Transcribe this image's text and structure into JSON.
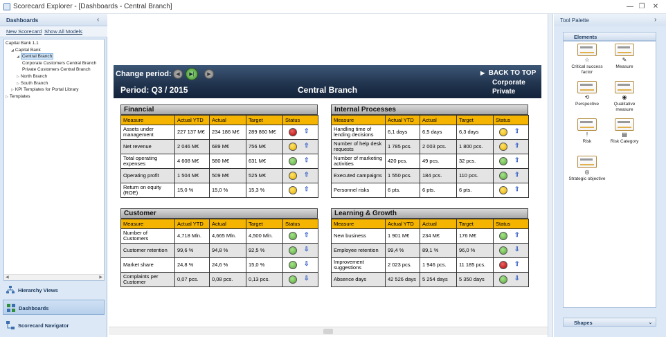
{
  "window": {
    "title": "Scorecard Explorer - [Dashboards - Central Branch]",
    "minimize": "—",
    "restore": "❐",
    "close": "✕"
  },
  "left_panel": {
    "header": "Dashboards",
    "chevron": "‹",
    "toolbar": {
      "new_scorecard": "New Scorecard",
      "show_all": "Show All Models"
    },
    "tree": [
      {
        "label": "Capital Bank 1.1",
        "indent": 0,
        "expander": ""
      },
      {
        "label": "Capital Bank",
        "indent": 1,
        "expander": "◢"
      },
      {
        "label": "Central Branch",
        "indent": 2,
        "expander": "◢",
        "selected": true
      },
      {
        "label": "Corporate Customers Central Branch",
        "indent": 3,
        "expander": ""
      },
      {
        "label": "Private Customers Central Branch",
        "indent": 3,
        "expander": ""
      },
      {
        "label": "North Branch",
        "indent": 2,
        "expander": "▷"
      },
      {
        "label": "South Branch",
        "indent": 2,
        "expander": "▷"
      },
      {
        "label": "KPI Templates for Portal Library",
        "indent": 1,
        "expander": "▷"
      },
      {
        "label": "Templates",
        "indent": 0,
        "expander": "▷"
      }
    ],
    "nav": {
      "hierarchy": "Hierarchy Views",
      "dashboards": "Dashboards",
      "navigator": "Scorecard Navigator"
    }
  },
  "banner": {
    "change_period": "Change period:",
    "prev": "◀",
    "current": "▶|",
    "next": "▶",
    "period": "Period:  Q3 / 2015",
    "branch": "Central Branch",
    "back_to_top": "BACK TO TOP",
    "link_corporate": "Corporate",
    "link_private": "Private"
  },
  "columns": [
    "Measure",
    "Actual YTD",
    "Actual",
    "Target",
    "Status"
  ],
  "sections": [
    {
      "id": "financial",
      "title": "Financial",
      "rows": [
        [
          "Assets under management",
          "227 137 M€",
          "234 186 M€",
          "289 860 M€",
          "red",
          "up"
        ],
        [
          "Net revenue",
          "2 046 M€",
          "689 M€",
          "756 M€",
          "yellow",
          "up"
        ],
        [
          "Total operating expenses",
          "4 608 M€",
          "580 M€",
          "631 M€",
          "green",
          "up"
        ],
        [
          "Operating profit",
          "1 504 M€",
          "509 M€",
          "525 M€",
          "yellow",
          "up"
        ],
        [
          "Return on equity (ROE)",
          "15,0 %",
          "15,0 %",
          "15,3 %",
          "yellow",
          "up"
        ]
      ]
    },
    {
      "id": "internal",
      "title": "Internal Processes",
      "rows": [
        [
          "Handling time of lending decisions",
          "6,1 days",
          "6,5 days",
          "6,3 days",
          "yellow",
          "up"
        ],
        [
          "Number of help desk requests",
          "1 785 pcs.",
          "2 003 pcs.",
          "1 800 pcs.",
          "yellow",
          "up"
        ],
        [
          "Number of marketing activities",
          "420 pcs.",
          "49 pcs.",
          "32 pcs.",
          "green",
          "up"
        ],
        [
          "Executed campaigns",
          "1 550 pcs.",
          "184 pcs.",
          "110 pcs.",
          "green",
          "up"
        ],
        [
          "Personnel risks",
          "6 pts.",
          "6 pts.",
          "6 pts.",
          "yellow",
          "up"
        ]
      ]
    },
    {
      "id": "customer",
      "title": "Customer",
      "rows": [
        [
          "Number of Customers",
          "4,718 Mln.",
          "4,665 Mln.",
          "4,500 Mln.",
          "green",
          "up"
        ],
        [
          "Customer retention",
          "99,6 %",
          "94,8 %",
          "92,5 %",
          "green",
          "down"
        ],
        [
          "Market share",
          "24,8 %",
          "24,6 %",
          "15,0 %",
          "green",
          "down"
        ],
        [
          "Complaints per Customer",
          "0,07 pcs.",
          "0,08 pcs.",
          "0,13 pcs.",
          "green",
          "down"
        ]
      ]
    },
    {
      "id": "learning",
      "title": "Learning & Growth",
      "rows": [
        [
          "New business",
          "1 901 M€",
          "234 M€",
          "176 M€",
          "green",
          "up"
        ],
        [
          "Employee retention",
          "99,4 %",
          "89,1 %",
          "96,0 %",
          "green",
          "down"
        ],
        [
          "Improvement suggestions",
          "2 023 pcs.",
          "1 946 pcs.",
          "11 185 pcs.",
          "red",
          "up"
        ],
        [
          "Absence days",
          "42 526 days",
          "5 254 days",
          "5 350 days",
          "green",
          "down"
        ]
      ]
    }
  ],
  "tool_palette": {
    "title": "Tool Palette",
    "chevron": "›",
    "elements_title": "Elements",
    "elements": [
      {
        "label": "Critical success factor",
        "icon": "star-icon",
        "glyph": "☆"
      },
      {
        "label": "Measure",
        "icon": "ruler-icon",
        "glyph": "✎"
      },
      {
        "label": "Perspective",
        "icon": "perspective-icon",
        "glyph": "⟲"
      },
      {
        "label": "Qualitative measure",
        "icon": "eye-icon",
        "glyph": "◉"
      },
      {
        "label": "Risk",
        "icon": "risk-icon",
        "glyph": "!"
      },
      {
        "label": "Risk Category",
        "icon": "risk-category-icon",
        "glyph": "▤"
      },
      {
        "label": "Strategic objective",
        "icon": "target-icon",
        "glyph": "◎"
      }
    ],
    "shapes_title": "Shapes",
    "shapes_chevron": "⌄"
  }
}
